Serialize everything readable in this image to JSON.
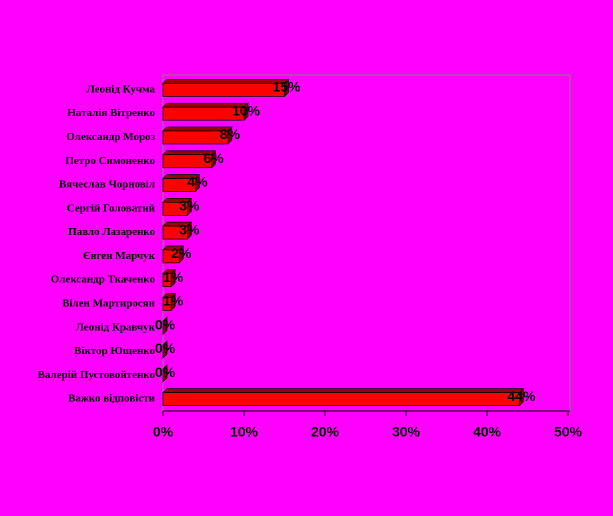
{
  "chart_data": {
    "type": "bar",
    "orientation": "horizontal",
    "categories": [
      "Леонід Кучма",
      "Наталія Вітренко",
      "Олександр Мороз",
      "Петро Симоненко",
      "Вячеслав Чорновіл",
      "Сергій Головатий",
      "Павло Лазаренко",
      "Євген Марчук",
      "Олександр Ткаченко",
      "Вілен Мартиросян",
      "Леонід Кравчук",
      "Віктор Ющенко",
      "Валерій Пустовойтенко",
      "Важко відповісти"
    ],
    "values": [
      15,
      10,
      8,
      6,
      4,
      3,
      3,
      2,
      1,
      1,
      0,
      0,
      0,
      44
    ],
    "value_labels": [
      "15%",
      "10%",
      "8%",
      "6%",
      "4%",
      "3%",
      "3%",
      "2%",
      "1%",
      "1%",
      "0%",
      "0%",
      "0%",
      "44%"
    ],
    "color": "#ff0000",
    "xlim": [
      0,
      50
    ],
    "xticks": [
      {
        "value": 0,
        "label": "0%"
      },
      {
        "value": 10,
        "label": "10%"
      },
      {
        "value": 20,
        "label": "20%"
      },
      {
        "value": 30,
        "label": "30%"
      },
      {
        "value": 40,
        "label": "40%"
      },
      {
        "value": 50,
        "label": "50%"
      }
    ]
  }
}
